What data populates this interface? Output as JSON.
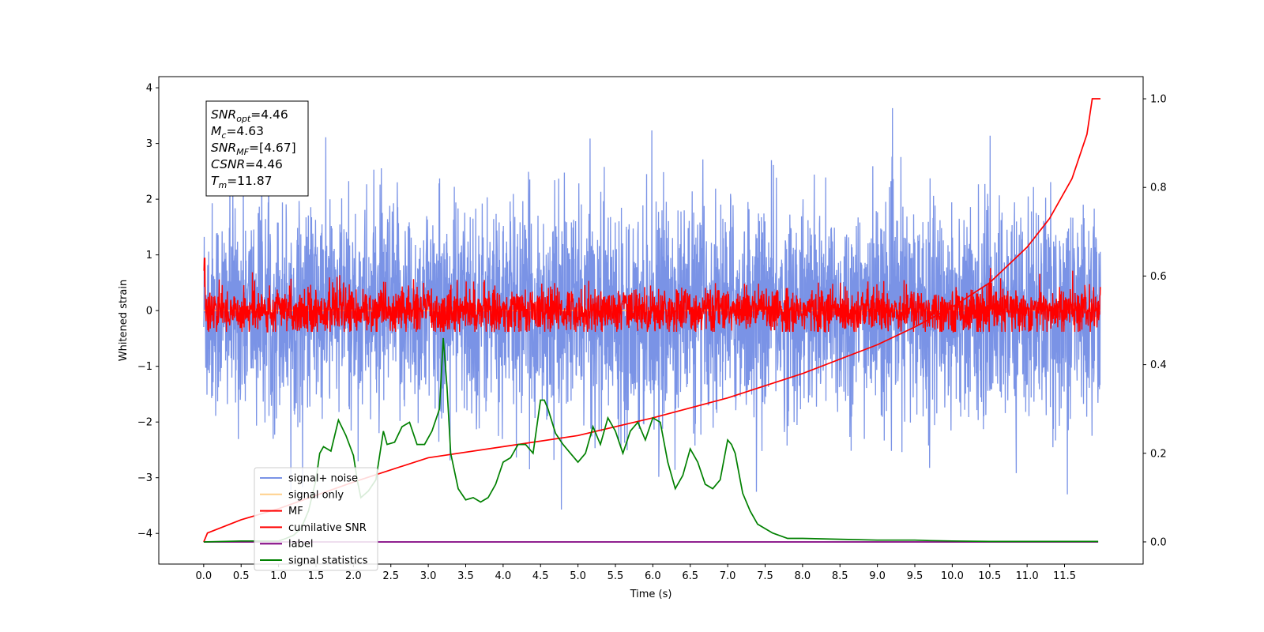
{
  "chart_data": {
    "type": "line",
    "title": "",
    "xlabel": "Time (s)",
    "ylabel": "Whitened strain",
    "xlim": [
      -0.6,
      12.55
    ],
    "ylim": [
      -4.55,
      4.2
    ],
    "y2lim": [
      -0.05,
      1.05
    ],
    "xticks": [
      0.0,
      0.5,
      1.0,
      1.5,
      2.0,
      2.5,
      3.0,
      3.5,
      4.0,
      4.5,
      5.0,
      5.5,
      6.0,
      6.5,
      7.0,
      7.5,
      8.0,
      8.5,
      9.0,
      9.5,
      10.0,
      10.5,
      11.0,
      11.5
    ],
    "xtick_labels": [
      "0.0",
      "0.5",
      "1.0",
      "1.5",
      "2.0",
      "2.5",
      "3.0",
      "3.5",
      "4.0",
      "4.5",
      "5.0",
      "5.5",
      "6.0",
      "6.5",
      "7.0",
      "7.5",
      "8.0",
      "8.5",
      "9.0",
      "9.5",
      "10.0",
      "10.5",
      "11.0",
      "11.5"
    ],
    "yticks": [
      -4,
      -3,
      -2,
      -1,
      0,
      1,
      2,
      3,
      4
    ],
    "ytick_labels": [
      "−4",
      "−3",
      "−2",
      "−1",
      "0",
      "1",
      "2",
      "3",
      "4"
    ],
    "y2ticks": [
      0.0,
      0.2,
      0.4,
      0.6,
      0.8,
      1.0
    ],
    "y2tick_labels": [
      "0.0",
      "0.2",
      "0.4",
      "0.6",
      "0.8",
      "1.0"
    ],
    "legend_placement": "lower-left",
    "grid": false,
    "info_box": {
      "lines": [
        {
          "main": "SNR",
          "sub": "opt",
          "rest": "=4.46"
        },
        {
          "main": "M",
          "sub": "c",
          "rest": "=4.63"
        },
        {
          "main": "SNR",
          "sub": "MF",
          "rest": "=[4.67]"
        },
        {
          "main": "CSNR",
          "sub": "",
          "rest": "=4.46"
        },
        {
          "main": "T",
          "sub": "m",
          "rest": "=11.87"
        }
      ]
    },
    "series": [
      {
        "name": "signal+ noise",
        "color": "#7a93e6",
        "axis": "left",
        "description_range": [
          -3.9,
          3.85
        ],
        "x_range": [
          0.0,
          11.98
        ]
      },
      {
        "name": "signal only",
        "color": "#ffd08a",
        "axis": "left",
        "x": [
          0.0,
          11.98
        ],
        "y": [
          0.0,
          0.0
        ]
      },
      {
        "name": "MF",
        "color": "#ff0000",
        "axis": "left",
        "x_range": [
          0.0,
          11.98
        ]
      },
      {
        "name": "cumilative SNR",
        "color": "#ff0000",
        "axis": "right",
        "x": [
          0.0,
          0.05,
          0.5,
          1.0,
          2.0,
          3.0,
          4.0,
          5.0,
          6.0,
          7.0,
          8.0,
          9.0,
          9.5,
          10.0,
          10.5,
          11.0,
          11.3,
          11.6,
          11.8,
          11.87,
          11.98
        ],
        "y": [
          0.0,
          0.02,
          0.05,
          0.075,
          0.135,
          0.19,
          0.215,
          0.24,
          0.28,
          0.325,
          0.38,
          0.445,
          0.485,
          0.53,
          0.585,
          0.665,
          0.73,
          0.82,
          0.92,
          1.0,
          1.0
        ]
      },
      {
        "name": "label",
        "color": "#800080",
        "axis": "right",
        "x": [
          0.0,
          11.95
        ],
        "y": [
          0.0,
          0.0
        ]
      },
      {
        "name": "signal statistics",
        "color": "#008000",
        "axis": "right",
        "x": [
          0.0,
          0.5,
          1.0,
          1.1,
          1.2,
          1.3,
          1.4,
          1.5,
          1.55,
          1.6,
          1.7,
          1.8,
          1.9,
          2.0,
          2.05,
          2.1,
          2.2,
          2.3,
          2.4,
          2.45,
          2.55,
          2.65,
          2.75,
          2.85,
          2.95,
          3.05,
          3.15,
          3.2,
          3.25,
          3.3,
          3.4,
          3.5,
          3.6,
          3.7,
          3.8,
          3.9,
          4.0,
          4.1,
          4.2,
          4.3,
          4.4,
          4.5,
          4.55,
          4.6,
          4.7,
          4.8,
          4.9,
          5.0,
          5.1,
          5.2,
          5.3,
          5.4,
          5.5,
          5.6,
          5.7,
          5.8,
          5.9,
          6.0,
          6.1,
          6.2,
          6.3,
          6.4,
          6.5,
          6.6,
          6.7,
          6.8,
          6.9,
          7.0,
          7.05,
          7.1,
          7.2,
          7.3,
          7.4,
          7.5,
          7.6,
          7.8,
          7.9,
          8.0,
          8.5,
          9.0,
          9.5,
          9.7,
          10.0,
          10.5,
          11.0,
          11.95
        ],
        "y": [
          0.0,
          0.002,
          0.002,
          0.008,
          0.015,
          0.03,
          0.07,
          0.14,
          0.2,
          0.215,
          0.205,
          0.275,
          0.24,
          0.195,
          0.14,
          0.1,
          0.115,
          0.14,
          0.25,
          0.22,
          0.225,
          0.26,
          0.27,
          0.22,
          0.22,
          0.25,
          0.3,
          0.46,
          0.35,
          0.2,
          0.12,
          0.095,
          0.1,
          0.09,
          0.1,
          0.13,
          0.18,
          0.19,
          0.22,
          0.22,
          0.2,
          0.32,
          0.32,
          0.3,
          0.245,
          0.22,
          0.2,
          0.18,
          0.2,
          0.26,
          0.22,
          0.28,
          0.25,
          0.2,
          0.25,
          0.27,
          0.23,
          0.28,
          0.27,
          0.18,
          0.12,
          0.15,
          0.21,
          0.18,
          0.13,
          0.12,
          0.14,
          0.23,
          0.22,
          0.2,
          0.11,
          0.07,
          0.04,
          0.03,
          0.02,
          0.008,
          0.008,
          0.008,
          0.006,
          0.004,
          0.004,
          0.003,
          0.002,
          0.001,
          0.001,
          0.001
        ]
      }
    ]
  }
}
